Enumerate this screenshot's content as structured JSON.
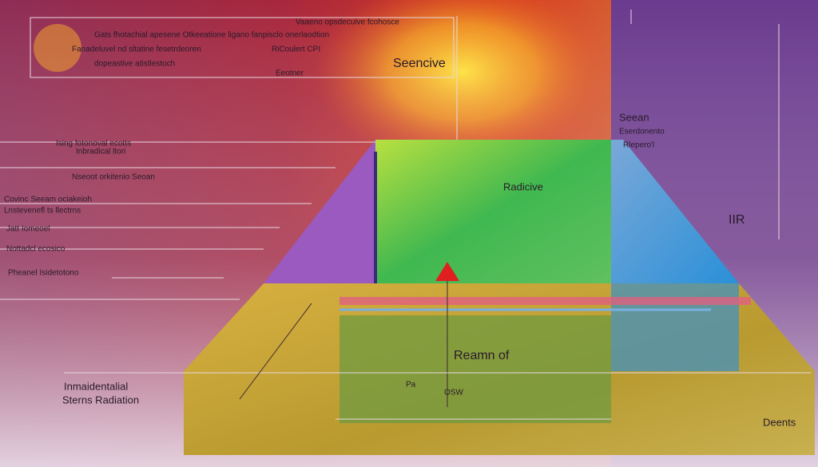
{
  "top_notes": [
    "Vaaeno opsdecuive fcohosce",
    "Gats fhotachial apesene Otkeeatione ligano fanpisclo onerlaodtion",
    "Fanadeluvel nd sltatine fesetrdeoren",
    "RiCoulert CPI",
    "dopeastive atistlestoch",
    "Eeotner"
  ],
  "regions": {
    "sensitive": "Seencive",
    "radiative": "Radicive",
    "ir": "IIR",
    "ream": "Reamn of",
    "depths": "Deents"
  },
  "right_notes": [
    "Seean",
    "Eserdonento",
    "Rlepero'l"
  ],
  "side_labels": [
    "Ising fotonoval ecotts",
    "Inbradical ltori",
    "Nseoot orkitenio Seoan",
    "Covinc Seeam ociakeioh",
    "Lnstevenefl ts llectrns",
    "Jatt Iomeoel",
    "Nottadcl ecosico",
    "Pheanel Isidetotono"
  ],
  "bottom_left": [
    "Inmaidentalial",
    "Sterns Radiation"
  ],
  "small": [
    "Pa",
    "OSW"
  ]
}
